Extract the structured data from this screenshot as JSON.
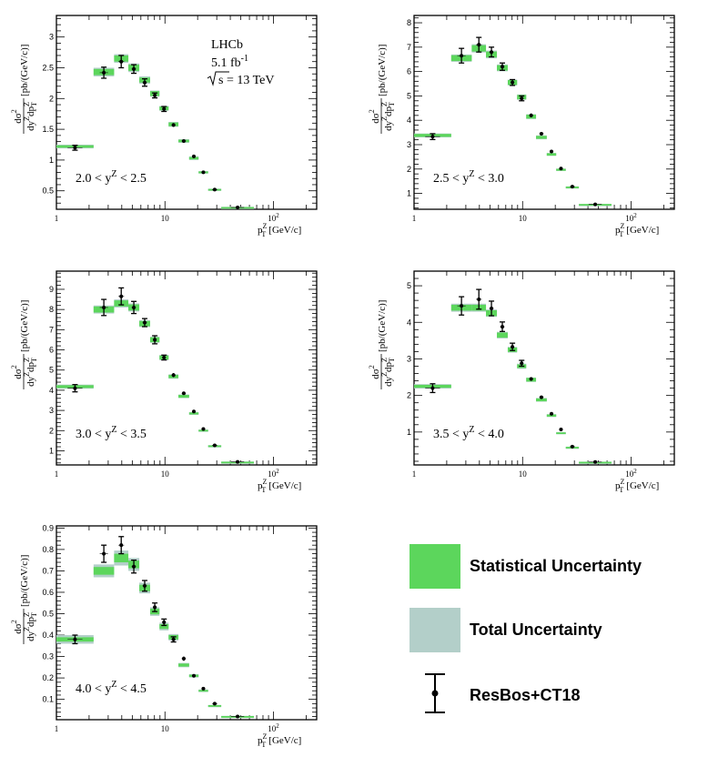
{
  "experiment": {
    "name": "LHCb",
    "lumi_label": "5.1 fb",
    "lumi_exp": "-1",
    "energy_label": "s = 13 TeV"
  },
  "axis_text": {
    "y_numer_d": "d",
    "y_numer_sigma": "σ",
    "y_numer_pow": "2",
    "y_denom_dy": "dy",
    "y_denom_z": "Z",
    "y_denom_dp": "dp",
    "y_denom_T": "T",
    "y_unit": "[pb/(GeV/c)]",
    "x_p": "p",
    "x_sup": "Z",
    "x_sub": "T",
    "x_unit": "[GeV/c]"
  },
  "legend": {
    "stat": "Statistical Uncertainty",
    "total": "Total Uncertainty",
    "theory": "ResBos+CT18"
  },
  "colors": {
    "stat": "#5cd65c",
    "total": "#b3cfc9",
    "theory": "#000000"
  },
  "chart_data": [
    {
      "type": "scatter",
      "title": "2.0 < yZ < 2.5",
      "range_label": {
        "pre": "2.0 < y",
        "sup": "Z",
        "post": " < 2.5"
      },
      "xscale": "log",
      "xlim": [
        1,
        250
      ],
      "ylim": [
        0.2,
        3.35
      ],
      "xticks": [
        {
          "v": 1,
          "t": "1"
        },
        {
          "v": 10,
          "t": "10"
        },
        {
          "v": 100,
          "t": "10",
          "e": "2"
        }
      ],
      "yticks": [
        {
          "v": 0.5,
          "t": "0.5"
        },
        {
          "v": 1,
          "t": "1"
        },
        {
          "v": 1.5,
          "t": "1.5"
        },
        {
          "v": 2,
          "t": "2"
        },
        {
          "v": 2.5,
          "t": "2.5"
        },
        {
          "v": 3,
          "t": "3"
        }
      ],
      "bins": [
        {
          "lo": 1.0,
          "hi": 2.2,
          "data": 1.22,
          "stat": 0.02,
          "tot": 0.03,
          "theory": 1.2,
          "terr": 0.04
        },
        {
          "lo": 2.2,
          "hi": 3.4,
          "data": 2.43,
          "stat": 0.05,
          "tot": 0.07,
          "theory": 2.42,
          "terr": 0.09
        },
        {
          "lo": 3.4,
          "hi": 4.6,
          "data": 2.65,
          "stat": 0.05,
          "tot": 0.07,
          "theory": 2.6,
          "terr": 0.1
        },
        {
          "lo": 4.6,
          "hi": 5.8,
          "data": 2.5,
          "stat": 0.05,
          "tot": 0.07,
          "theory": 2.48,
          "terr": 0.07
        },
        {
          "lo": 5.8,
          "hi": 7.3,
          "data": 2.3,
          "stat": 0.04,
          "tot": 0.06,
          "theory": 2.26,
          "terr": 0.06
        },
        {
          "lo": 7.3,
          "hi": 8.9,
          "data": 2.08,
          "stat": 0.04,
          "tot": 0.05,
          "theory": 2.05,
          "terr": 0.04
        },
        {
          "lo": 8.9,
          "hi": 10.8,
          "data": 1.84,
          "stat": 0.03,
          "tot": 0.04,
          "theory": 1.83,
          "terr": 0.04
        },
        {
          "lo": 10.8,
          "hi": 13.3,
          "data": 1.58,
          "stat": 0.03,
          "tot": 0.04,
          "theory": 1.57,
          "terr": 0.03
        },
        {
          "lo": 13.3,
          "hi": 16.7,
          "data": 1.31,
          "stat": 0.02,
          "tot": 0.03,
          "theory": 1.31,
          "terr": 0.02
        },
        {
          "lo": 16.7,
          "hi": 20.4,
          "data": 1.03,
          "stat": 0.02,
          "tot": 0.03,
          "theory": 1.06,
          "terr": 0.02
        },
        {
          "lo": 20.4,
          "hi": 25.0,
          "data": 0.8,
          "stat": 0.015,
          "tot": 0.02,
          "theory": 0.8,
          "terr": 0.01
        },
        {
          "lo": 25.0,
          "hi": 33.0,
          "data": 0.52,
          "stat": 0.01,
          "tot": 0.015,
          "theory": 0.52,
          "terr": 0.01
        },
        {
          "lo": 33.0,
          "hi": 66.0,
          "data": 0.23,
          "stat": 0.006,
          "tot": 0.01,
          "theory": 0.23,
          "terr": 0.005
        }
      ]
    },
    {
      "type": "scatter",
      "title": "2.5 < yZ < 3.0",
      "range_label": {
        "pre": "2.5 < y",
        "sup": "Z",
        "post": " < 3.0"
      },
      "xscale": "log",
      "xlim": [
        1,
        250
      ],
      "ylim": [
        0.35,
        8.3
      ],
      "xticks": [
        {
          "v": 1,
          "t": "1"
        },
        {
          "v": 10,
          "t": "10"
        },
        {
          "v": 100,
          "t": "10",
          "e": "2"
        }
      ],
      "yticks": [
        {
          "v": 1,
          "t": "1"
        },
        {
          "v": 2,
          "t": "2"
        },
        {
          "v": 3,
          "t": "3"
        },
        {
          "v": 4,
          "t": "4"
        },
        {
          "v": 5,
          "t": "5"
        },
        {
          "v": 6,
          "t": "6"
        },
        {
          "v": 7,
          "t": "7"
        },
        {
          "v": 8,
          "t": "8"
        }
      ],
      "bins": [
        {
          "lo": 1.0,
          "hi": 2.2,
          "data": 3.38,
          "stat": 0.06,
          "tot": 0.08,
          "theory": 3.33,
          "terr": 0.12
        },
        {
          "lo": 2.2,
          "hi": 3.4,
          "data": 6.55,
          "stat": 0.12,
          "tot": 0.15,
          "theory": 6.65,
          "terr": 0.3
        },
        {
          "lo": 3.4,
          "hi": 4.6,
          "data": 6.95,
          "stat": 0.13,
          "tot": 0.17,
          "theory": 7.1,
          "terr": 0.3
        },
        {
          "lo": 4.6,
          "hi": 5.8,
          "data": 6.7,
          "stat": 0.12,
          "tot": 0.16,
          "theory": 6.8,
          "terr": 0.2
        },
        {
          "lo": 5.8,
          "hi": 7.3,
          "data": 6.15,
          "stat": 0.11,
          "tot": 0.14,
          "theory": 6.2,
          "terr": 0.15
        },
        {
          "lo": 7.3,
          "hi": 8.9,
          "data": 5.55,
          "stat": 0.1,
          "tot": 0.12,
          "theory": 5.55,
          "terr": 0.12
        },
        {
          "lo": 8.9,
          "hi": 10.8,
          "data": 4.95,
          "stat": 0.09,
          "tot": 0.11,
          "theory": 4.9,
          "terr": 0.1
        },
        {
          "lo": 10.8,
          "hi": 13.3,
          "data": 4.15,
          "stat": 0.08,
          "tot": 0.1,
          "theory": 4.2,
          "terr": 0.08
        },
        {
          "lo": 13.3,
          "hi": 16.7,
          "data": 3.3,
          "stat": 0.06,
          "tot": 0.08,
          "theory": 3.45,
          "terr": 0.06
        },
        {
          "lo": 16.7,
          "hi": 20.4,
          "data": 2.6,
          "stat": 0.05,
          "tot": 0.06,
          "theory": 2.72,
          "terr": 0.04
        },
        {
          "lo": 20.4,
          "hi": 25.0,
          "data": 1.97,
          "stat": 0.04,
          "tot": 0.05,
          "theory": 2.02,
          "terr": 0.03
        },
        {
          "lo": 25.0,
          "hi": 33.0,
          "data": 1.25,
          "stat": 0.03,
          "tot": 0.04,
          "theory": 1.28,
          "terr": 0.02
        },
        {
          "lo": 33.0,
          "hi": 66.0,
          "data": 0.55,
          "stat": 0.015,
          "tot": 0.02,
          "theory": 0.55,
          "terr": 0.01
        }
      ]
    },
    {
      "type": "scatter",
      "title": "3.0 < yZ < 3.5",
      "range_label": {
        "pre": "3.0 < y",
        "sup": "Z",
        "post": " < 3.5"
      },
      "xscale": "log",
      "xlim": [
        1,
        250
      ],
      "ylim": [
        0.3,
        9.9
      ],
      "xticks": [
        {
          "v": 1,
          "t": "1"
        },
        {
          "v": 10,
          "t": "10"
        },
        {
          "v": 100,
          "t": "10",
          "e": "2"
        }
      ],
      "yticks": [
        {
          "v": 1,
          "t": "1"
        },
        {
          "v": 2,
          "t": "2"
        },
        {
          "v": 3,
          "t": "3"
        },
        {
          "v": 4,
          "t": "4"
        },
        {
          "v": 5,
          "t": "5"
        },
        {
          "v": 6,
          "t": "6"
        },
        {
          "v": 7,
          "t": "7"
        },
        {
          "v": 8,
          "t": "8"
        },
        {
          "v": 9,
          "t": "9"
        }
      ],
      "bins": [
        {
          "lo": 1.0,
          "hi": 2.2,
          "data": 4.18,
          "stat": 0.07,
          "tot": 0.1,
          "theory": 4.1,
          "terr": 0.18
        },
        {
          "lo": 2.2,
          "hi": 3.4,
          "data": 8.0,
          "stat": 0.15,
          "tot": 0.2,
          "theory": 8.1,
          "terr": 0.4
        },
        {
          "lo": 3.4,
          "hi": 4.6,
          "data": 8.3,
          "stat": 0.15,
          "tot": 0.2,
          "theory": 8.65,
          "terr": 0.42
        },
        {
          "lo": 4.6,
          "hi": 5.8,
          "data": 8.1,
          "stat": 0.15,
          "tot": 0.2,
          "theory": 8.1,
          "terr": 0.3
        },
        {
          "lo": 5.8,
          "hi": 7.3,
          "data": 7.3,
          "stat": 0.13,
          "tot": 0.17,
          "theory": 7.35,
          "terr": 0.2
        },
        {
          "lo": 7.3,
          "hi": 8.9,
          "data": 6.5,
          "stat": 0.12,
          "tot": 0.15,
          "theory": 6.5,
          "terr": 0.2
        },
        {
          "lo": 8.9,
          "hi": 10.8,
          "data": 5.62,
          "stat": 0.1,
          "tot": 0.13,
          "theory": 5.62,
          "terr": 0.12
        },
        {
          "lo": 10.8,
          "hi": 13.3,
          "data": 4.68,
          "stat": 0.08,
          "tot": 0.11,
          "theory": 4.75,
          "terr": 0.1
        },
        {
          "lo": 13.3,
          "hi": 16.7,
          "data": 3.7,
          "stat": 0.07,
          "tot": 0.09,
          "theory": 3.85,
          "terr": 0.07
        },
        {
          "lo": 16.7,
          "hi": 20.4,
          "data": 2.85,
          "stat": 0.05,
          "tot": 0.07,
          "theory": 2.95,
          "terr": 0.05
        },
        {
          "lo": 20.4,
          "hi": 25.0,
          "data": 2.0,
          "stat": 0.04,
          "tot": 0.05,
          "theory": 2.08,
          "terr": 0.04
        },
        {
          "lo": 25.0,
          "hi": 33.0,
          "data": 1.24,
          "stat": 0.03,
          "tot": 0.04,
          "theory": 1.27,
          "terr": 0.02
        },
        {
          "lo": 33.0,
          "hi": 66.0,
          "data": 0.45,
          "stat": 0.01,
          "tot": 0.02,
          "theory": 0.45,
          "terr": 0.01
        }
      ]
    },
    {
      "type": "scatter",
      "title": "3.5 < yZ < 4.0",
      "range_label": {
        "pre": "3.5 < y",
        "sup": "Z",
        "post": " < 4.0"
      },
      "xscale": "log",
      "xlim": [
        1,
        250
      ],
      "ylim": [
        0.1,
        5.4
      ],
      "xticks": [
        {
          "v": 1,
          "t": "1"
        },
        {
          "v": 10,
          "t": "10"
        },
        {
          "v": 100,
          "t": "10",
          "e": "2"
        }
      ],
      "yticks": [
        {
          "v": 1,
          "t": "1"
        },
        {
          "v": 2,
          "t": "2"
        },
        {
          "v": 3,
          "t": "3"
        },
        {
          "v": 4,
          "t": "4"
        },
        {
          "v": 5,
          "t": "5"
        }
      ],
      "bins": [
        {
          "lo": 1.0,
          "hi": 2.2,
          "data": 2.25,
          "stat": 0.04,
          "tot": 0.06,
          "theory": 2.2,
          "terr": 0.12
        },
        {
          "lo": 2.2,
          "hi": 3.4,
          "data": 4.4,
          "stat": 0.08,
          "tot": 0.11,
          "theory": 4.45,
          "terr": 0.25
        },
        {
          "lo": 3.4,
          "hi": 4.6,
          "data": 4.4,
          "stat": 0.08,
          "tot": 0.11,
          "theory": 4.63,
          "terr": 0.27
        },
        {
          "lo": 4.6,
          "hi": 5.8,
          "data": 4.25,
          "stat": 0.08,
          "tot": 0.1,
          "theory": 4.38,
          "terr": 0.2
        },
        {
          "lo": 5.8,
          "hi": 7.3,
          "data": 3.65,
          "stat": 0.07,
          "tot": 0.09,
          "theory": 3.88,
          "terr": 0.13
        },
        {
          "lo": 7.3,
          "hi": 8.9,
          "data": 3.25,
          "stat": 0.06,
          "tot": 0.08,
          "theory": 3.33,
          "terr": 0.1
        },
        {
          "lo": 8.9,
          "hi": 10.8,
          "data": 2.8,
          "stat": 0.05,
          "tot": 0.07,
          "theory": 2.88,
          "terr": 0.08
        },
        {
          "lo": 10.8,
          "hi": 13.3,
          "data": 2.43,
          "stat": 0.05,
          "tot": 0.06,
          "theory": 2.45,
          "terr": 0.05
        },
        {
          "lo": 13.3,
          "hi": 16.7,
          "data": 1.88,
          "stat": 0.04,
          "tot": 0.05,
          "theory": 1.95,
          "terr": 0.04
        },
        {
          "lo": 16.7,
          "hi": 20.4,
          "data": 1.45,
          "stat": 0.03,
          "tot": 0.04,
          "theory": 1.5,
          "terr": 0.03
        },
        {
          "lo": 20.4,
          "hi": 25.0,
          "data": 0.97,
          "stat": 0.02,
          "tot": 0.03,
          "theory": 1.07,
          "terr": 0.02
        },
        {
          "lo": 25.0,
          "hi": 33.0,
          "data": 0.58,
          "stat": 0.015,
          "tot": 0.02,
          "theory": 0.6,
          "terr": 0.01
        },
        {
          "lo": 33.0,
          "hi": 66.0,
          "data": 0.18,
          "stat": 0.006,
          "tot": 0.01,
          "theory": 0.18,
          "terr": 0.005
        }
      ]
    },
    {
      "type": "scatter",
      "title": "4.0 < yZ < 4.5",
      "range_label": {
        "pre": "4.0 < y",
        "sup": "Z",
        "post": " < 4.5"
      },
      "xscale": "log",
      "xlim": [
        1,
        250
      ],
      "ylim": [
        0.005,
        0.91
      ],
      "xticks": [
        {
          "v": 1,
          "t": "1"
        },
        {
          "v": 10,
          "t": "10"
        },
        {
          "v": 100,
          "t": "10",
          "e": "2"
        }
      ],
      "yticks": [
        {
          "v": 0.1,
          "t": "0.1"
        },
        {
          "v": 0.2,
          "t": "0.2"
        },
        {
          "v": 0.3,
          "t": "0.3"
        },
        {
          "v": 0.4,
          "t": "0.4"
        },
        {
          "v": 0.5,
          "t": "0.5"
        },
        {
          "v": 0.6,
          "t": "0.6"
        },
        {
          "v": 0.7,
          "t": "0.7"
        },
        {
          "v": 0.8,
          "t": "0.8"
        },
        {
          "v": 0.9,
          "t": "0.9"
        }
      ],
      "bins": [
        {
          "lo": 1.0,
          "hi": 2.2,
          "data": 0.38,
          "stat": 0.01,
          "tot": 0.02,
          "theory": 0.38,
          "terr": 0.02
        },
        {
          "lo": 2.2,
          "hi": 3.4,
          "data": 0.7,
          "stat": 0.018,
          "tot": 0.03,
          "theory": 0.78,
          "terr": 0.04
        },
        {
          "lo": 3.4,
          "hi": 4.6,
          "data": 0.76,
          "stat": 0.02,
          "tot": 0.035,
          "theory": 0.82,
          "terr": 0.04
        },
        {
          "lo": 4.6,
          "hi": 5.8,
          "data": 0.73,
          "stat": 0.018,
          "tot": 0.03,
          "theory": 0.72,
          "terr": 0.03
        },
        {
          "lo": 5.8,
          "hi": 7.3,
          "data": 0.62,
          "stat": 0.015,
          "tot": 0.025,
          "theory": 0.63,
          "terr": 0.025
        },
        {
          "lo": 7.3,
          "hi": 8.9,
          "data": 0.51,
          "stat": 0.013,
          "tot": 0.02,
          "theory": 0.53,
          "terr": 0.02
        },
        {
          "lo": 8.9,
          "hi": 10.8,
          "data": 0.44,
          "stat": 0.011,
          "tot": 0.018,
          "theory": 0.46,
          "terr": 0.015
        },
        {
          "lo": 10.8,
          "hi": 13.3,
          "data": 0.39,
          "stat": 0.01,
          "tot": 0.015,
          "theory": 0.38,
          "terr": 0.012
        },
        {
          "lo": 13.3,
          "hi": 16.7,
          "data": 0.26,
          "stat": 0.007,
          "tot": 0.01,
          "theory": 0.29,
          "terr": 0.01
        },
        {
          "lo": 16.7,
          "hi": 20.4,
          "data": 0.21,
          "stat": 0.005,
          "tot": 0.008,
          "theory": 0.21,
          "terr": 0.006
        },
        {
          "lo": 20.4,
          "hi": 25.0,
          "data": 0.14,
          "stat": 0.004,
          "tot": 0.006,
          "theory": 0.15,
          "terr": 0.004
        },
        {
          "lo": 25.0,
          "hi": 33.0,
          "data": 0.07,
          "stat": 0.003,
          "tot": 0.004,
          "theory": 0.08,
          "terr": 0.003
        },
        {
          "lo": 33.0,
          "hi": 66.0,
          "data": 0.02,
          "stat": 0.002,
          "tot": 0.003,
          "theory": 0.02,
          "terr": 0.002
        }
      ]
    }
  ]
}
